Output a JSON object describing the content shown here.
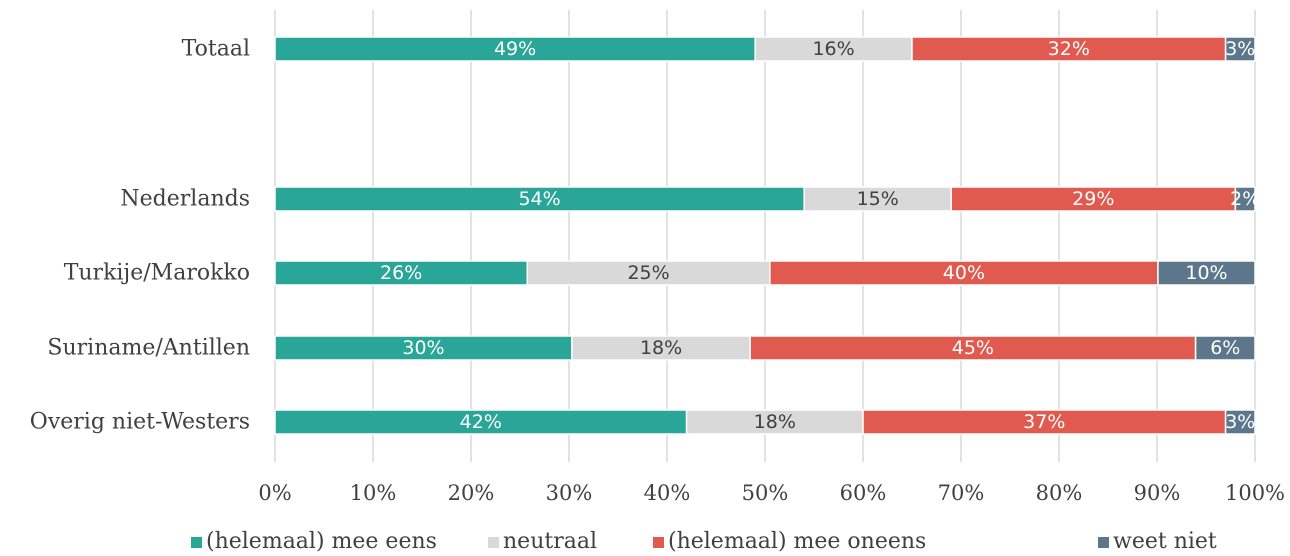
{
  "chart_data": {
    "type": "bar",
    "orientation": "horizontal",
    "stacked": "percent",
    "categories": [
      "Totaal",
      "Nederlands",
      "Turkije/Marokko",
      "Suriname/Antillen",
      "Overig niet-Westers"
    ],
    "series": [
      {
        "name": "(helemaal) mee eens",
        "color": "#2aa698",
        "label_color": "#ffffff",
        "values": [
          49,
          54,
          26,
          30,
          42
        ],
        "labels": [
          "49%",
          "54%",
          "26%",
          "30%",
          "42%"
        ]
      },
      {
        "name": "neutraal",
        "color": "#d9d9d9",
        "label_color": "#404040",
        "values": [
          16,
          15,
          25,
          18,
          18
        ],
        "labels": [
          "16%",
          "15%",
          "25%",
          "18%",
          "18%"
        ]
      },
      {
        "name": "(helemaal) mee oneens",
        "color": "#e05a4f",
        "label_color": "#ffffff",
        "values": [
          32,
          29,
          40,
          45,
          37
        ],
        "labels": [
          "32%",
          "29%",
          "40%",
          "45%",
          "37%"
        ]
      },
      {
        "name": "weet niet",
        "color": "#5c778c",
        "label_color": "#ffffff",
        "values": [
          3,
          2,
          10,
          6,
          3
        ],
        "labels": [
          "3%",
          "2%",
          "10%",
          "6%",
          "3%"
        ]
      }
    ],
    "xlim": [
      0,
      100
    ],
    "x_ticks": [
      "0%",
      "10%",
      "20%",
      "30%",
      "40%",
      "50%",
      "60%",
      "70%",
      "80%",
      "90%",
      "100%"
    ],
    "grid": "vertical",
    "legend_position": "bottom"
  }
}
